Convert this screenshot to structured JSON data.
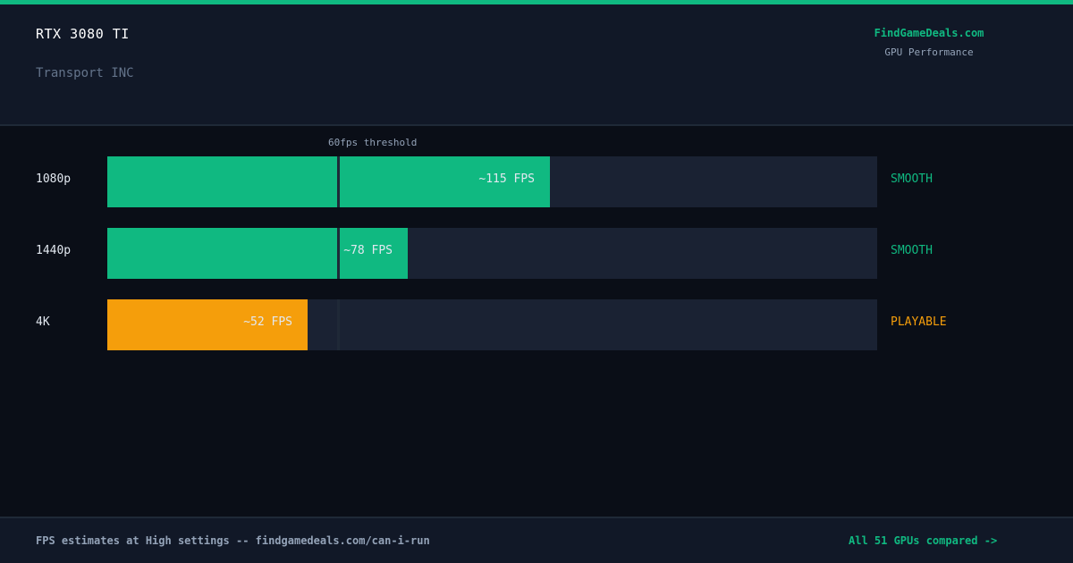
{
  "header": {
    "gpu": "RTX 3080 TI",
    "game": "Transport INC",
    "brand": "FindGameDeals.com",
    "brand_sub": "GPU Performance"
  },
  "colors": {
    "smooth": "#10b981",
    "playable": "#f59e0b",
    "track": "#1a2233",
    "threshold_line": "#1f2937"
  },
  "chart_data": {
    "type": "bar",
    "orientation": "horizontal",
    "categories": [
      "1080p",
      "1440p",
      "4K"
    ],
    "values": [
      115,
      78,
      52
    ],
    "value_labels": [
      "~115 FPS",
      "~78 FPS",
      "~52 FPS"
    ],
    "statuses": [
      "SMOOTH",
      "SMOOTH",
      "PLAYABLE"
    ],
    "status_colors": [
      "#10b981",
      "#10b981",
      "#f59e0b"
    ],
    "threshold": {
      "value": 60,
      "label": "60fps threshold"
    },
    "xlim": [
      0,
      200
    ]
  },
  "footer": {
    "note": "FPS estimates at High settings -- findgamedeals.com/can-i-run",
    "link": "All 51 GPUs compared ->"
  }
}
